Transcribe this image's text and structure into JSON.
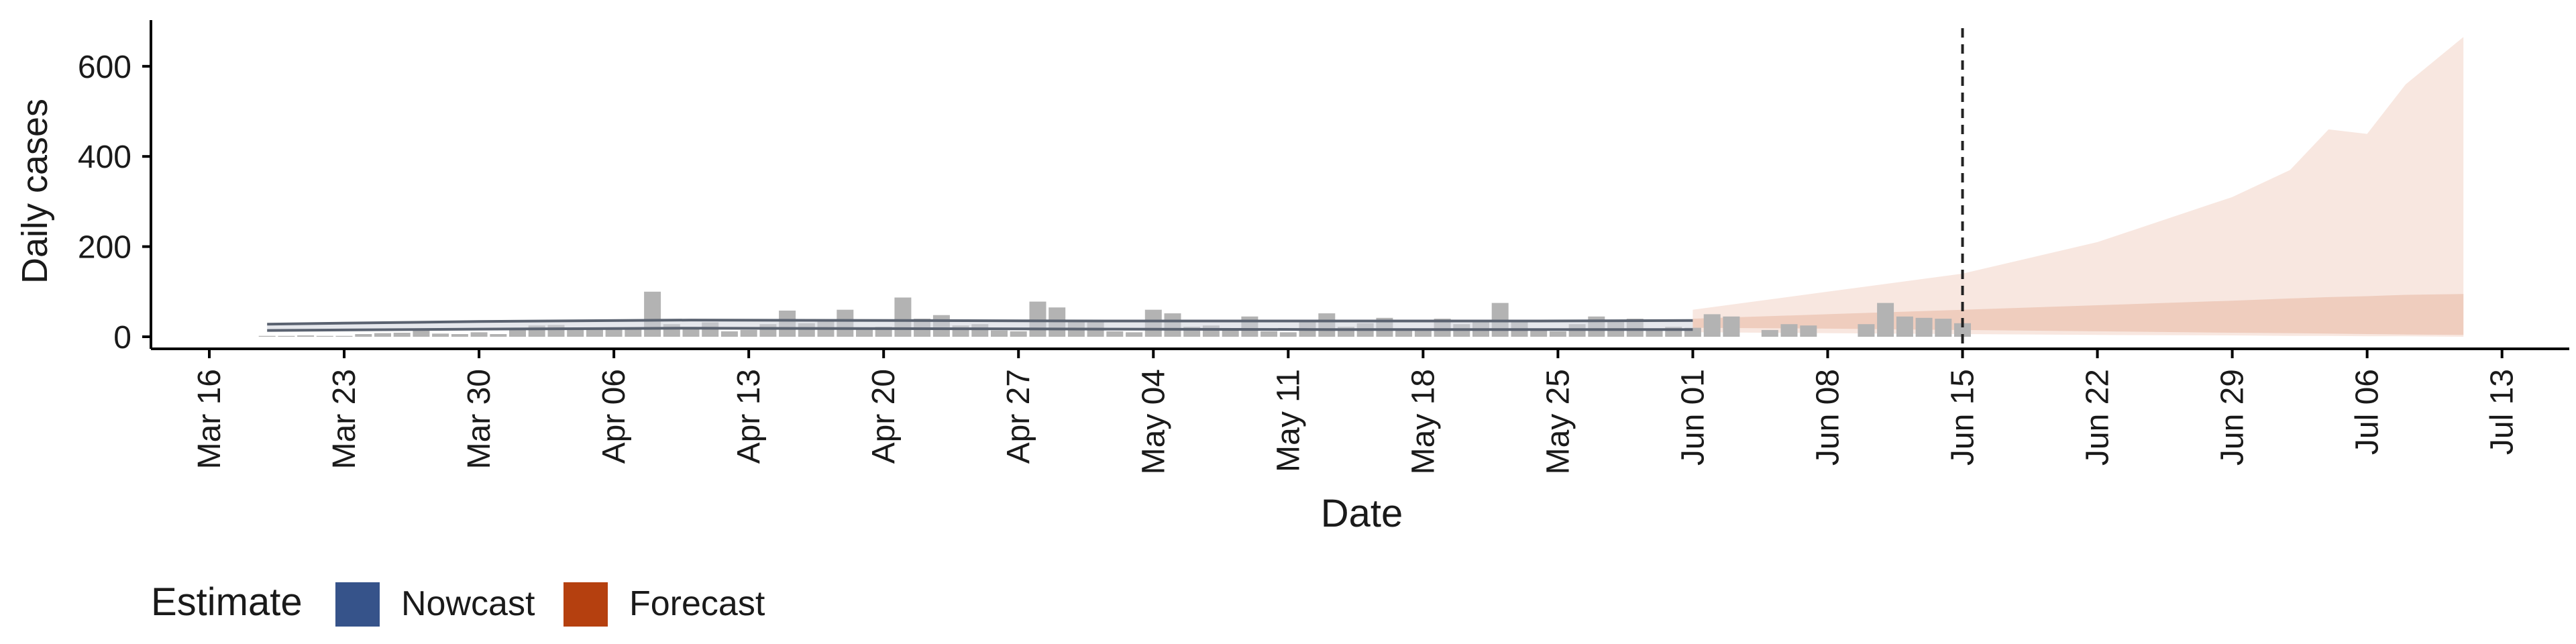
{
  "chart_data": {
    "type": "bar",
    "title": "",
    "xlabel": "Date",
    "ylabel": "Daily cases",
    "ylim": [
      0,
      700
    ],
    "yticks": [
      0,
      200,
      400,
      600
    ],
    "xticks": [
      "Mar 16",
      "Mar 23",
      "Mar 30",
      "Apr 06",
      "Apr 13",
      "Apr 20",
      "Apr 27",
      "May 04",
      "May 11",
      "May 18",
      "May 25",
      "Jun 01",
      "Jun 08",
      "Jun 15",
      "Jun 22",
      "Jun 29",
      "Jul 06",
      "Jul 13"
    ],
    "forecast_start": "Jun 15",
    "legend": {
      "title": "Estimate",
      "position": "bottom-left",
      "items": [
        {
          "label": "Nowcast",
          "color": "#36538a"
        },
        {
          "label": "Forecast",
          "color": "#b5400f"
        }
      ]
    },
    "colors": {
      "bars": "#b3b3b3",
      "nowcast": "#36538a",
      "forecast": "#b5400f"
    },
    "observed_daily_cases": {
      "start_date": "Mar 19",
      "values": [
        2,
        2,
        3,
        2,
        2,
        6,
        8,
        9,
        14,
        7,
        6,
        10,
        6,
        20,
        25,
        26,
        20,
        20,
        16,
        20,
        100,
        28,
        20,
        32,
        12,
        15,
        28,
        58,
        30,
        38,
        60,
        20,
        22,
        87,
        40,
        48,
        25,
        28,
        14,
        12,
        78,
        65,
        35,
        35,
        12,
        10,
        60,
        52,
        22,
        25,
        18,
        45,
        12,
        10,
        38,
        52,
        22,
        30,
        42,
        15,
        18,
        40,
        28,
        38,
        75,
        35,
        18,
        12,
        28,
        45,
        35,
        40,
        18,
        22,
        20,
        50,
        45,
        0,
        15,
        28,
        25,
        0,
        0,
        28,
        75,
        45,
        42,
        40,
        30,
        0
      ]
    },
    "nowcast_band": {
      "dates": [
        "Mar 19",
        "Mar 30",
        "Apr 10",
        "Apr 21",
        "May 02",
        "May 13",
        "May 24",
        "Jun 01"
      ],
      "lower": [
        14,
        17,
        19,
        18,
        17,
        16,
        16,
        16
      ],
      "upper": [
        28,
        34,
        37,
        36,
        35,
        35,
        35,
        36
      ]
    },
    "forecast_bands": {
      "dates": [
        "Jun 01",
        "Jun 08",
        "Jun 15",
        "Jun 22",
        "Jun 29",
        "Jul 02",
        "Jul 04",
        "Jul 06",
        "Jul 08",
        "Jul 11"
      ],
      "inner_upper": [
        40,
        50,
        60,
        70,
        80,
        85,
        88,
        90,
        93,
        95
      ],
      "inner_lower": [
        20,
        18,
        15,
        12,
        9,
        8,
        7,
        6,
        5,
        4
      ],
      "outer_upper": [
        60,
        100,
        140,
        210,
        310,
        370,
        460,
        450,
        560,
        665
      ],
      "outer_lower": [
        10,
        8,
        6,
        4,
        3,
        2,
        2,
        1,
        1,
        0
      ]
    }
  }
}
